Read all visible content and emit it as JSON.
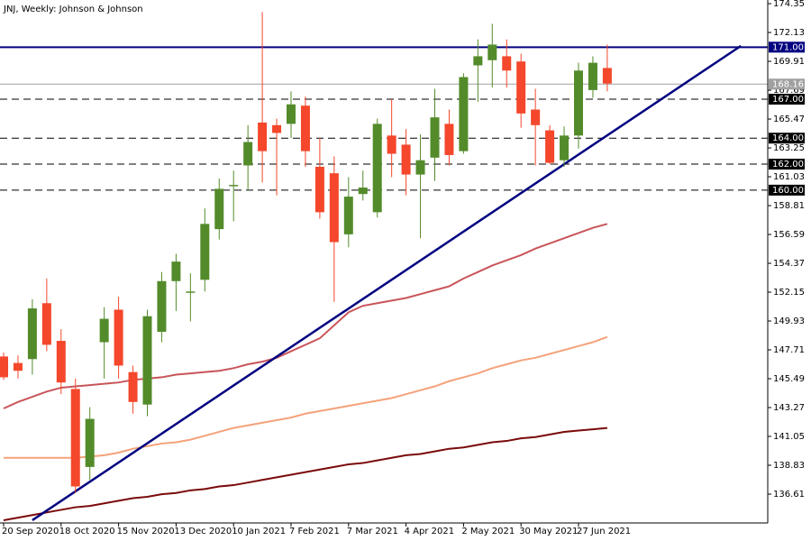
{
  "chart_data": {
    "type": "candlestick",
    "title": "JNJ, Weekly:  Johnson & Johnson",
    "categories": [
      "20 Sep 2020",
      null,
      null,
      null,
      "18 Oct 2020",
      null,
      null,
      null,
      "15 Nov 2020",
      null,
      null,
      null,
      "13 Dec 2020",
      null,
      null,
      null,
      "10 Jan 2021",
      null,
      null,
      null,
      "7 Feb 2021",
      null,
      null,
      null,
      "7 Mar 2021",
      null,
      null,
      null,
      "4 Apr 2021",
      null,
      null,
      null,
      "2 May 2021",
      null,
      null,
      null,
      "30 May 2021",
      null,
      null,
      null,
      "27 Jun 2021",
      null,
      null
    ],
    "open": [
      147.2,
      146.7,
      147.0,
      151.3,
      148.4,
      144.7,
      138.7,
      148.3,
      150.8,
      146.0,
      143.5,
      149.1,
      153.0,
      152.1,
      153.1,
      157.0,
      160.3,
      161.9,
      165.2,
      165.0,
      165.1,
      166.5,
      161.8,
      161.3,
      156.6,
      159.7,
      158.3,
      164.2,
      163.5,
      161.2,
      162.5,
      165.1,
      163.0,
      169.6,
      170.0,
      170.3,
      169.9,
      166.2,
      164.6,
      162.3,
      164.2,
      167.7,
      169.4
    ],
    "high": [
      147.5,
      147.3,
      151.6,
      153.2,
      149.3,
      145.5,
      143.3,
      151.0,
      151.8,
      146.5,
      150.8,
      153.7,
      155.1,
      153.6,
      158.6,
      160.9,
      161.5,
      165.0,
      173.7,
      165.5,
      167.6,
      167.2,
      164.0,
      162.6,
      161.0,
      161.5,
      165.5,
      167.0,
      164.7,
      164.3,
      167.8,
      166.2,
      169.0,
      171.6,
      172.8,
      171.6,
      170.5,
      167.8,
      165.0,
      164.9,
      169.8,
      170.3,
      171.2
    ],
    "low": [
      145.4,
      145.5,
      145.8,
      147.6,
      144.3,
      136.7,
      137.7,
      145.5,
      145.5,
      142.8,
      142.6,
      148.3,
      150.7,
      149.9,
      152.2,
      156.2,
      157.6,
      160.0,
      160.6,
      159.6,
      164.0,
      161.8,
      157.8,
      151.4,
      155.6,
      159.2,
      157.9,
      161.0,
      159.6,
      156.3,
      160.7,
      161.9,
      162.8,
      166.8,
      167.9,
      167.9,
      164.8,
      161.9,
      162.0,
      161.8,
      163.2,
      167.1,
      167.6
    ],
    "close": [
      145.6,
      146.1,
      150.9,
      148.1,
      145.2,
      137.2,
      142.4,
      150.1,
      146.5,
      143.7,
      150.3,
      153.0,
      154.5,
      152.2,
      157.4,
      160.1,
      160.4,
      163.7,
      163.0,
      164.4,
      166.6,
      163.0,
      158.3,
      156.0,
      159.5,
      160.2,
      165.1,
      162.8,
      161.2,
      162.3,
      165.6,
      162.7,
      168.7,
      170.3,
      171.2,
      169.2,
      165.9,
      165.0,
      162.1,
      164.2,
      169.2,
      169.8,
      168.2
    ],
    "up_color": "#538b2a",
    "down_color": "#f4472b",
    "overlays": [
      {
        "color": "#c8555a",
        "values": [
          143.2,
          143.7,
          144.1,
          144.5,
          144.8,
          144.9,
          145.0,
          145.1,
          145.2,
          145.4,
          145.5,
          145.6,
          145.8,
          145.9,
          146.0,
          146.1,
          146.3,
          146.6,
          146.8,
          147.1,
          147.6,
          148.1,
          148.6,
          149.6,
          150.6,
          151.1,
          151.3,
          151.5,
          151.7,
          152.0,
          152.3,
          152.6,
          153.2,
          153.7,
          154.2,
          154.6,
          155.0,
          155.5,
          155.9,
          156.3,
          156.7,
          157.1,
          157.4
        ]
      },
      {
        "color": "#f5a27a",
        "values": [
          139.4,
          139.4,
          139.4,
          139.4,
          139.4,
          139.4,
          139.5,
          139.6,
          139.8,
          140.1,
          140.3,
          140.5,
          140.6,
          140.8,
          141.1,
          141.4,
          141.7,
          141.9,
          142.1,
          142.3,
          142.5,
          142.8,
          143.0,
          143.2,
          143.4,
          143.6,
          143.8,
          144.0,
          144.3,
          144.6,
          144.9,
          145.3,
          145.6,
          145.9,
          146.3,
          146.6,
          146.9,
          147.1,
          147.4,
          147.7,
          148.0,
          148.3,
          148.7
        ]
      },
      {
        "color": "#7a0a0a",
        "values": [
          134.6,
          134.8,
          135.0,
          135.2,
          135.4,
          135.6,
          135.7,
          135.9,
          136.1,
          136.3,
          136.4,
          136.6,
          136.7,
          136.9,
          137.0,
          137.2,
          137.3,
          137.5,
          137.7,
          137.9,
          138.1,
          138.3,
          138.5,
          138.7,
          138.9,
          139.0,
          139.2,
          139.4,
          139.6,
          139.7,
          139.9,
          140.1,
          140.2,
          140.4,
          140.6,
          140.7,
          140.9,
          141.0,
          141.2,
          141.4,
          141.5,
          141.6,
          141.7
        ]
      }
    ],
    "levels": [
      {
        "value": 171,
        "label": "171.00",
        "color": "#000080",
        "style": "solid"
      },
      {
        "value": 168.16,
        "label": "168.16",
        "color": "#a0a0a0",
        "style": "thin"
      },
      {
        "value": 167,
        "label": "167.00",
        "color": "#000000",
        "style": "dashed"
      },
      {
        "value": 164,
        "label": "164.00",
        "color": "#000000",
        "style": "dashed"
      },
      {
        "value": 162,
        "label": "162.00",
        "color": "#000000",
        "style": "dashed"
      },
      {
        "value": 160,
        "label": "160.00",
        "color": "#000000",
        "style": "dashed"
      }
    ],
    "trendline": {
      "color": "#000080",
      "x": [
        2,
        51.3
      ],
      "y": [
        134.6,
        171.1
      ]
    },
    "ylim": [
      134.39,
      174.63
    ],
    "yticks": [
      174.35,
      172.13,
      169.91,
      167.69,
      165.47,
      163.25,
      161.03,
      158.81,
      156.59,
      154.37,
      152.15,
      149.93,
      147.71,
      145.49,
      143.27,
      141.05,
      138.83,
      136.61
    ]
  }
}
